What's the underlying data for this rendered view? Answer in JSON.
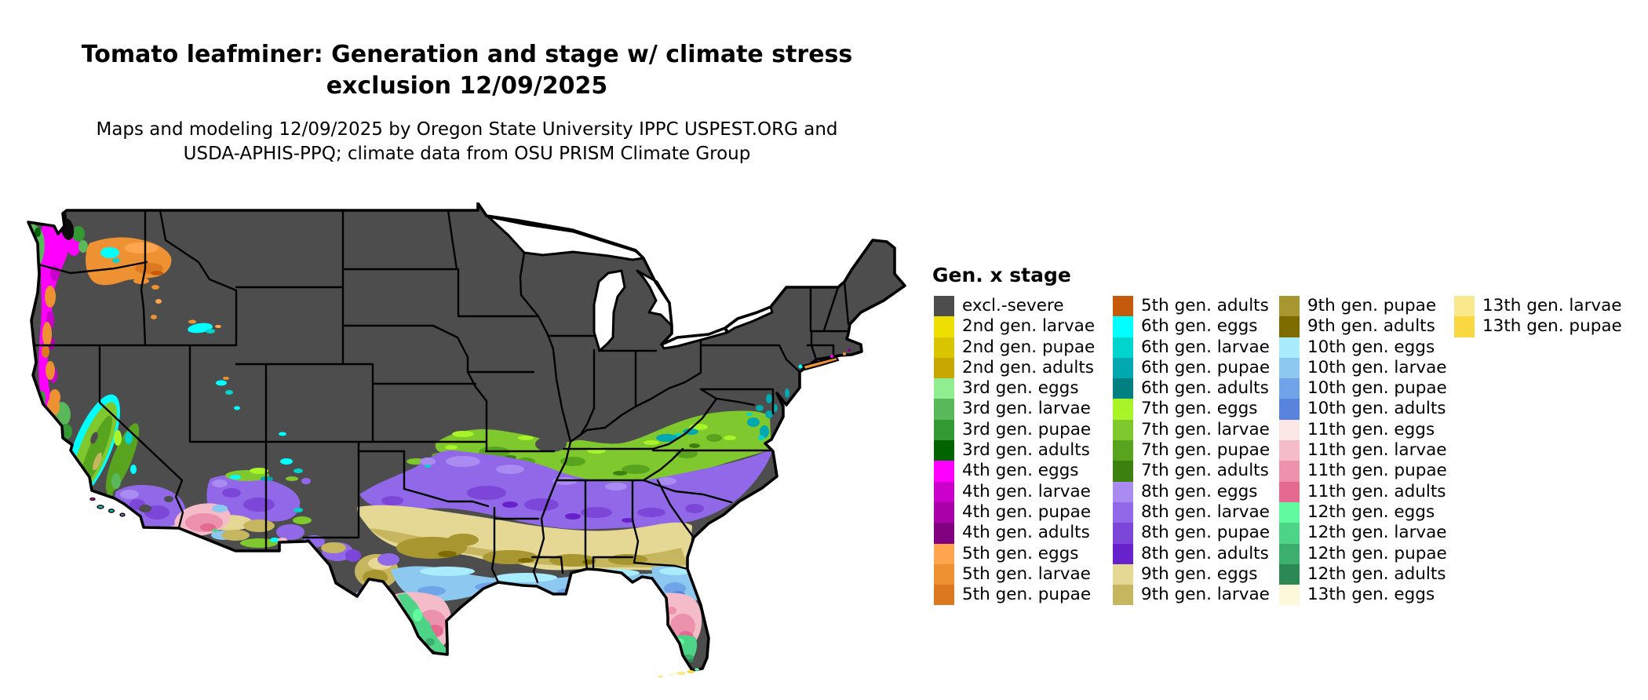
{
  "header": {
    "title_line1": "Tomato leafminer: Generation and stage w/ climate stress",
    "title_line2": "exclusion 12/09/2025",
    "subtitle_line1": "Maps and modeling 12/09/2025 by Oregon State University IPPC USPEST.ORG and",
    "subtitle_line2": "USDA-APHIS-PPQ; climate data from OSU PRISM Climate Group"
  },
  "map": {
    "region": "Continental United States",
    "base_exclusion_color": "#4D4D4D",
    "state_border_color": "#000000",
    "water_color": "#FFFFFF"
  },
  "legend": {
    "title": "Gen. x stage",
    "columns": [
      {
        "entries": [
          {
            "id": "excl",
            "label": "excl.-severe",
            "color": "#4D4D4D"
          },
          {
            "id": "g2-larvae",
            "label": "2nd gen. larvae",
            "color": "#EDE000"
          },
          {
            "id": "g2-pupae",
            "label": "2nd gen. pupae",
            "color": "#D8C500"
          },
          {
            "id": "g2-adults",
            "label": "2nd gen. adults",
            "color": "#C8A800"
          },
          {
            "id": "g3-eggs",
            "label": "3rd gen. eggs",
            "color": "#90EE90"
          },
          {
            "id": "g3-larvae",
            "label": "3rd gen. larvae",
            "color": "#59B859"
          },
          {
            "id": "g3-pupae",
            "label": "3rd gen. pupae",
            "color": "#339933"
          },
          {
            "id": "g3-adults",
            "label": "3rd gen. adults",
            "color": "#006400"
          },
          {
            "id": "g4-eggs",
            "label": "4th gen. eggs",
            "color": "#FF00FF"
          },
          {
            "id": "g4-larvae",
            "label": "4th gen. larvae",
            "color": "#CC00CC"
          },
          {
            "id": "g4-pupae",
            "label": "4th gen. pupae",
            "color": "#AA00AA"
          },
          {
            "id": "g4-adults",
            "label": "4th gen. adults",
            "color": "#800080"
          },
          {
            "id": "g5-eggs",
            "label": "5th gen. eggs",
            "color": "#FFA54F"
          },
          {
            "id": "g5-larvae",
            "label": "5th gen. larvae",
            "color": "#EE9133"
          },
          {
            "id": "g5-pupae",
            "label": "5th gen. pupae",
            "color": "#DC781E"
          }
        ]
      },
      {
        "entries": [
          {
            "id": "g5-adults",
            "label": "5th gen. adults",
            "color": "#C65A0C"
          },
          {
            "id": "g6-eggs",
            "label": "6th gen. eggs",
            "color": "#00FFFF"
          },
          {
            "id": "g6-larvae",
            "label": "6th gen. larvae",
            "color": "#00D4CC"
          },
          {
            "id": "g6-pupae",
            "label": "6th gen. pupae",
            "color": "#00A8B0"
          },
          {
            "id": "g6-adults",
            "label": "6th gen. adults",
            "color": "#008080"
          },
          {
            "id": "g7-eggs",
            "label": "7th gen. eggs",
            "color": "#A8F428"
          },
          {
            "id": "g7-larvae",
            "label": "7th gen. larvae",
            "color": "#7FC82D"
          },
          {
            "id": "g7-pupae",
            "label": "7th gen. pupae",
            "color": "#58A41E"
          },
          {
            "id": "g7-adults",
            "label": "7th gen. adults",
            "color": "#3C8010"
          },
          {
            "id": "g8-eggs",
            "label": "8th gen. eggs",
            "color": "#A98BF2"
          },
          {
            "id": "g8-larvae",
            "label": "8th gen. larvae",
            "color": "#9168E8"
          },
          {
            "id": "g8-pupae",
            "label": "8th gen. pupae",
            "color": "#7C46D8"
          },
          {
            "id": "g8-adults",
            "label": "8th gen. adults",
            "color": "#6822CC"
          },
          {
            "id": "g9-eggs",
            "label": "9th gen. eggs",
            "color": "#E4D894"
          },
          {
            "id": "g9-larvae",
            "label": "9th gen. larvae",
            "color": "#C6B660"
          }
        ]
      },
      {
        "entries": [
          {
            "id": "g9-pupae",
            "label": "9th gen. pupae",
            "color": "#A89630"
          },
          {
            "id": "g9-adults",
            "label": "9th gen. adults",
            "color": "#7E6C00"
          },
          {
            "id": "g10-eggs",
            "label": "10th gen. eggs",
            "color": "#A8ECFE"
          },
          {
            "id": "g10-larvae",
            "label": "10th gen. larvae",
            "color": "#8CC8F0"
          },
          {
            "id": "g10-pupae",
            "label": "10th gen. pupae",
            "color": "#70A4E8"
          },
          {
            "id": "g10-adults",
            "label": "10th gen. adults",
            "color": "#5884DE"
          },
          {
            "id": "g11-eggs",
            "label": "11th gen. eggs",
            "color": "#FBE8E4"
          },
          {
            "id": "g11-larvae",
            "label": "11th gen. larvae",
            "color": "#F4BCC8"
          },
          {
            "id": "g11-pupae",
            "label": "11th gen. pupae",
            "color": "#EC92AC"
          },
          {
            "id": "g11-adults",
            "label": "11th gen. adults",
            "color": "#E46A92"
          },
          {
            "id": "g12-eggs",
            "label": "12th gen. eggs",
            "color": "#62FA9E"
          },
          {
            "id": "g12-larvae",
            "label": "12th gen. larvae",
            "color": "#4ED486"
          },
          {
            "id": "g12-pupae",
            "label": "12th gen. pupae",
            "color": "#3CAE6E"
          },
          {
            "id": "g12-adults",
            "label": "12th gen. adults",
            "color": "#2C8854"
          },
          {
            "id": "g13-eggs",
            "label": "13th gen. eggs",
            "color": "#FDF8DA"
          }
        ]
      },
      {
        "entries": [
          {
            "id": "g13-larvae",
            "label": "13th gen. larvae",
            "color": "#FAE88C"
          },
          {
            "id": "g13-pupae",
            "label": "13th gen. pupae",
            "color": "#F9D842"
          }
        ]
      }
    ]
  }
}
